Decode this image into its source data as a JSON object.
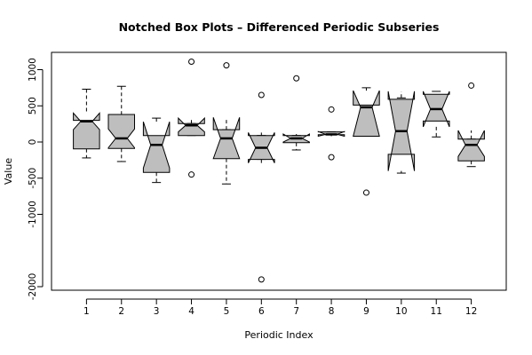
{
  "chart_data": {
    "type": "boxplot",
    "variant": "notched",
    "title": "Notched Box Plots – Differenced Periodic Subseries",
    "xlabel": "Periodic Index",
    "ylabel": "Value",
    "categories": [
      "1",
      "2",
      "3",
      "4",
      "5",
      "6",
      "7",
      "8",
      "9",
      "10",
      "11",
      "12"
    ],
    "yticks": [
      -2000,
      -1000,
      -500,
      0,
      500,
      1000
    ],
    "ylim": [
      -2000,
      1200
    ],
    "xlim": [
      0,
      13
    ],
    "box_fill": "#bebebe",
    "boxes": [
      {
        "category": "1",
        "min": -220,
        "q1": -95,
        "median": 285,
        "q3": 300,
        "max": 730,
        "notch": [
          170,
          400
        ],
        "outliers": []
      },
      {
        "category": "2",
        "min": -270,
        "q1": -90,
        "median": 50,
        "q3": 380,
        "max": 770,
        "notch": [
          -80,
          180
        ],
        "outliers": []
      },
      {
        "category": "3",
        "min": -560,
        "q1": -420,
        "median": -40,
        "q3": 90,
        "max": 330,
        "notch": [
          -360,
          280
        ],
        "outliers": []
      },
      {
        "category": "4",
        "min": 90,
        "q1": 90,
        "median": 230,
        "q3": 255,
        "max": 255,
        "notch": [
          140,
          330
        ],
        "outliers": [
          1110,
          -450
        ]
      },
      {
        "category": "5",
        "min": -580,
        "q1": -230,
        "median": 50,
        "q3": 170,
        "max": 170,
        "notch": [
          -230,
          340
        ],
        "outliers": [
          1060
        ]
      },
      {
        "category": "6",
        "min": -240,
        "q1": -240,
        "median": -80,
        "q3": 90,
        "max": 90,
        "notch": [
          -290,
          130
        ],
        "outliers": [
          650,
          -1900
        ]
      },
      {
        "category": "7",
        "min": -110,
        "q1": -10,
        "median": 50,
        "q3": 90,
        "max": 90,
        "notch": [
          0,
          110
        ],
        "outliers": [
          880
        ]
      },
      {
        "category": "8",
        "min": 100,
        "q1": 100,
        "median": 105,
        "q3": 140,
        "max": 140,
        "notch": [
          80,
          145
        ],
        "outliers": [
          450,
          -210
        ]
      },
      {
        "category": "9",
        "min": 80,
        "q1": 80,
        "median": 480,
        "q3": 510,
        "max": 750,
        "notch": [
          80,
          710
        ],
        "outliers": [
          -700
        ]
      },
      {
        "category": "10",
        "min": -430,
        "q1": -170,
        "median": 150,
        "q3": 590,
        "max": 610,
        "notch": [
          -400,
          700
        ],
        "outliers": []
      },
      {
        "category": "11",
        "min": 70,
        "q1": 290,
        "median": 455,
        "q3": 660,
        "max": 700,
        "notch": [
          210,
          700
        ],
        "outliers": []
      },
      {
        "category": "12",
        "min": -340,
        "q1": -260,
        "median": -40,
        "q3": 40,
        "max": 40,
        "notch": [
          -200,
          160
        ],
        "outliers": [
          780
        ]
      }
    ]
  }
}
